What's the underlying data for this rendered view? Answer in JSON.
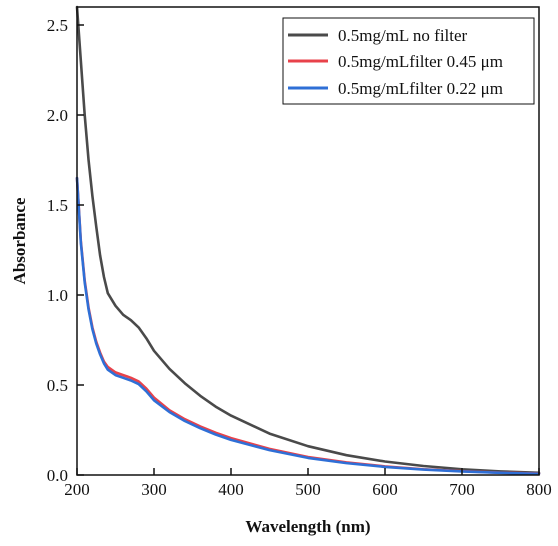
{
  "chart_data": {
    "type": "line",
    "xlabel": "Wavelength (nm)",
    "ylabel": "Absorbance",
    "xlim": [
      200,
      800
    ],
    "ylim": [
      0,
      2.6
    ],
    "xticks": [
      "200",
      "300",
      "400",
      "500",
      "600",
      "700",
      "800"
    ],
    "yticks": [
      "0.0",
      "0.5",
      "1.0",
      "1.5",
      "2.0",
      "2.5"
    ],
    "legend_position": "top-right",
    "grid": false,
    "series": [
      {
        "name": "0.5mg/mL no filter",
        "color": "#4a4a4a",
        "x": [
          200,
          205,
          210,
          215,
          220,
          225,
          230,
          235,
          240,
          250,
          260,
          270,
          280,
          290,
          300,
          320,
          340,
          360,
          380,
          400,
          450,
          500,
          550,
          600,
          650,
          700,
          750,
          800
        ],
        "y": [
          2.6,
          2.3,
          2.0,
          1.75,
          1.55,
          1.38,
          1.22,
          1.1,
          1.01,
          0.94,
          0.89,
          0.86,
          0.82,
          0.76,
          0.69,
          0.59,
          0.51,
          0.44,
          0.38,
          0.33,
          0.23,
          0.16,
          0.11,
          0.075,
          0.05,
          0.032,
          0.02,
          0.012
        ]
      },
      {
        "name": "0.5mg/mLfilter 0.45 μm",
        "color": "#e8424a",
        "x": [
          200,
          205,
          210,
          215,
          220,
          225,
          230,
          235,
          240,
          250,
          260,
          270,
          280,
          290,
          300,
          320,
          340,
          360,
          380,
          400,
          450,
          500,
          550,
          600,
          650,
          700,
          750,
          800
        ],
        "y": [
          1.65,
          1.3,
          1.08,
          0.93,
          0.82,
          0.74,
          0.68,
          0.63,
          0.6,
          0.57,
          0.555,
          0.54,
          0.52,
          0.48,
          0.43,
          0.36,
          0.31,
          0.27,
          0.235,
          0.205,
          0.145,
          0.1,
          0.07,
          0.048,
          0.032,
          0.021,
          0.013,
          0.008
        ]
      },
      {
        "name": "0.5mg/mLfilter 0.22 μm",
        "color": "#2f6fd6",
        "x": [
          200,
          205,
          210,
          215,
          220,
          225,
          230,
          235,
          240,
          250,
          260,
          270,
          280,
          290,
          300,
          320,
          340,
          360,
          380,
          400,
          450,
          500,
          550,
          600,
          650,
          700,
          750,
          800
        ],
        "y": [
          1.65,
          1.29,
          1.07,
          0.92,
          0.81,
          0.73,
          0.67,
          0.62,
          0.585,
          0.555,
          0.54,
          0.525,
          0.505,
          0.465,
          0.415,
          0.35,
          0.3,
          0.26,
          0.225,
          0.195,
          0.138,
          0.095,
          0.066,
          0.045,
          0.03,
          0.02,
          0.012,
          0.007
        ]
      }
    ]
  }
}
